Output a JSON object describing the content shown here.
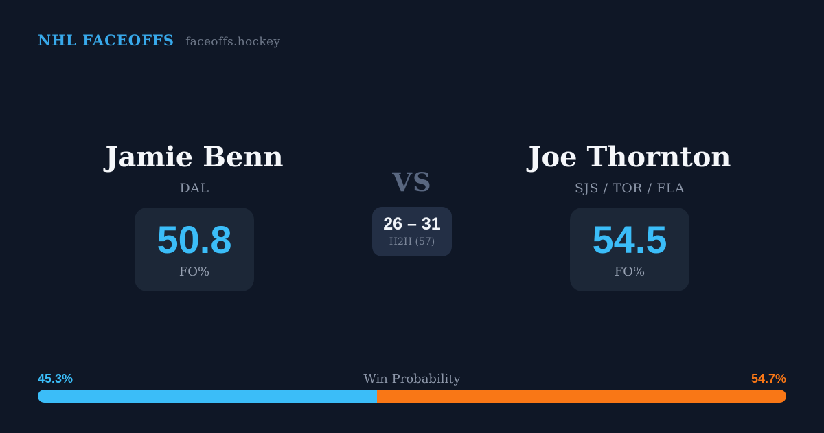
{
  "header": {
    "brand": "NHL FACEOFFS",
    "site": "faceoffs.hockey"
  },
  "matchup": {
    "vs_label": "VS",
    "h2h": {
      "score": "26 – 31",
      "label": "H2H (57)"
    },
    "players": [
      {
        "name": "Jamie Benn",
        "teams": "DAL",
        "fo_value": "50.8",
        "fo_label": "FO%"
      },
      {
        "name": "Joe Thornton",
        "teams": "SJS / TOR / FLA",
        "fo_value": "54.5",
        "fo_label": "FO%"
      }
    ]
  },
  "win_probability": {
    "label": "Win Probability",
    "left_pct": "45.3%",
    "right_pct": "54.7%",
    "left_value": 45.3,
    "right_value": 54.7,
    "left_color": "#3bbdf8",
    "right_color": "#f97716"
  },
  "colors": {
    "background": "#0f1726",
    "card_background": "#1c2737",
    "h2h_card_background": "#232f45",
    "accent_blue": "#3bbdf8",
    "accent_orange": "#f97716",
    "brand_blue": "#38a9ea",
    "text_white": "#f5f7fa",
    "text_gray": "#8c96a8"
  }
}
